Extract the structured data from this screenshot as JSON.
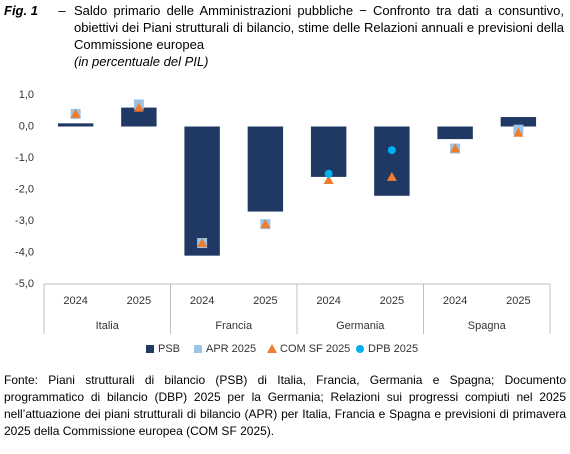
{
  "chart_data": {
    "type": "bar",
    "figure_label": "Fig. 1",
    "separator": "–",
    "title": "Saldo primario delle Amministrazioni pubbliche − Confronto tra dati a consuntivo, obiettivi dei Piani strutturali di bilancio, stime delle Relazioni annuali e previsioni della Commissione europea",
    "subtitle": "(in percentuale del PIL)",
    "categories": [
      "2024",
      "2025",
      "2024",
      "2025",
      "2024",
      "2025",
      "2024",
      "2025"
    ],
    "groups": [
      "Italia",
      "Francia",
      "Germania",
      "Spagna"
    ],
    "series": [
      {
        "name": "PSB",
        "marker": "bar",
        "color": "#203864",
        "values": [
          0.1,
          0.6,
          -4.1,
          -2.7,
          -1.6,
          -2.2,
          -0.4,
          0.3
        ]
      },
      {
        "name": "APR 2025",
        "marker": "square",
        "color": "#9dc3e6",
        "values": [
          0.4,
          0.7,
          -3.7,
          -3.1,
          null,
          null,
          -0.7,
          -0.1
        ]
      },
      {
        "name": "COM SF 2025",
        "marker": "triangle",
        "color": "#ed7d31",
        "values": [
          0.4,
          0.6,
          -3.7,
          -3.1,
          -1.7,
          -1.6,
          -0.7,
          -0.2
        ]
      },
      {
        "name": "DPB 2025",
        "marker": "circle",
        "color": "#00b0f0",
        "values": [
          null,
          null,
          null,
          null,
          -1.5,
          -0.75,
          null,
          null
        ]
      }
    ],
    "ylim": [
      -5,
      1
    ],
    "yticks": [
      {
        "value": -5,
        "label": "-5,0"
      },
      {
        "value": -4,
        "label": "-4,0"
      },
      {
        "value": -3,
        "label": "-3,0"
      },
      {
        "value": -2,
        "label": "-2,0"
      },
      {
        "value": -1,
        "label": "-1,0"
      },
      {
        "value": 0,
        "label": "0,0"
      },
      {
        "value": 1,
        "label": "1,0"
      }
    ],
    "grid": false,
    "legend": "bottom",
    "source": "Fonte: Piani strutturali di bilancio (PSB) di Italia, Francia, Germania e Spagna; Documento programmatico di bilancio (DBP) 2025 per la Germania; Relazioni sui progressi compiuti nel 2025 nell’attuazione dei piani strutturali di bilancio (APR) per Italia, Francia e Spagna e previsioni di primavera 2025 della Commissione europea (COM SF 2025)."
  }
}
